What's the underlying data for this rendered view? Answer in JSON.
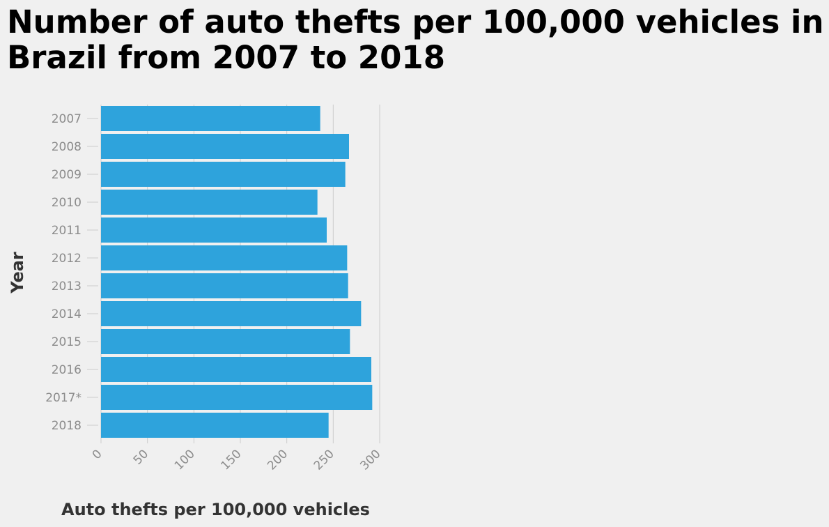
{
  "title": "Number of auto thefts per 100,000 vehicles in Brazil from 2007 to 2018",
  "colors": {
    "background": "#f0f0f0",
    "bar": "#2ea3dc",
    "grid": "#cccccc",
    "tick_text": "#8c8c8c",
    "axis_title": "#333333"
  },
  "chart_data": {
    "type": "bar",
    "orientation": "horizontal",
    "title": "Number of auto thefts per 100,000 vehicles in Brazil from 2007 to 2018",
    "xlabel": "Auto thefts per 100,000 vehicles",
    "ylabel": "Year",
    "categories": [
      "2007",
      "2008",
      "2009",
      "2010",
      "2011",
      "2012",
      "2013",
      "2014",
      "2015",
      "2016",
      "2017*",
      "2018"
    ],
    "values": [
      236,
      267,
      263,
      233,
      243,
      265,
      266,
      280,
      268,
      291,
      292,
      245
    ],
    "xlim": [
      0,
      300
    ],
    "xticks": [
      "0",
      "50",
      "100",
      "150",
      "200",
      "250",
      "300"
    ],
    "grid": "vertical",
    "legend": "none"
  }
}
